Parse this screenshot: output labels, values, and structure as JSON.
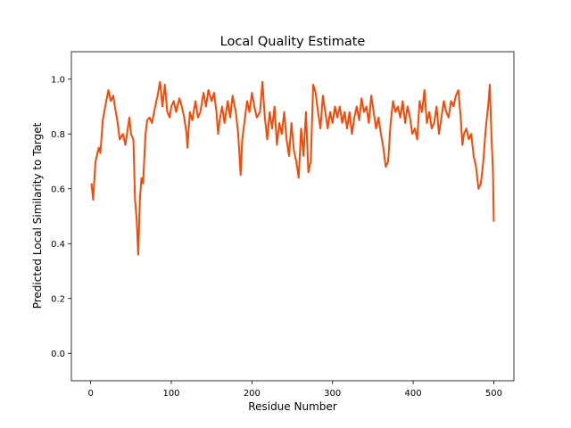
{
  "chart_data": {
    "type": "line",
    "title": "Local Quality Estimate",
    "xlabel": "Residue Number",
    "ylabel": "Predicted Local Similarity to Target",
    "xlim": [
      -23.95,
      524.95
    ],
    "ylim": [
      -0.1,
      1.1
    ],
    "xticks": [
      0,
      100,
      200,
      300,
      400,
      500
    ],
    "yticks": [
      {
        "value": 0,
        "label": "0.0"
      },
      {
        "value": 0.2,
        "label": "0.2"
      },
      {
        "value": 0.4,
        "label": "0.4"
      },
      {
        "value": 0.6,
        "label": "0.6"
      },
      {
        "value": 0.8,
        "label": "0.8"
      },
      {
        "value": 1,
        "label": "1.0"
      }
    ],
    "color": "#ff4500",
    "x": [
      1,
      3,
      6,
      10,
      12,
      15,
      18,
      20,
      22,
      25,
      28,
      30,
      33,
      36,
      40,
      43,
      46,
      48,
      50,
      53,
      55,
      57,
      59,
      61,
      63,
      65,
      68,
      70,
      73,
      76,
      80,
      83,
      86,
      89,
      92,
      95,
      98,
      100,
      103,
      106,
      110,
      113,
      116,
      119,
      120,
      123,
      126,
      130,
      133,
      136,
      140,
      143,
      146,
      150,
      153,
      156,
      158,
      160,
      163,
      166,
      170,
      173,
      176,
      180,
      183,
      185,
      186,
      188,
      191,
      194,
      197,
      200,
      203,
      206,
      210,
      213,
      216,
      219,
      222,
      225,
      228,
      231,
      234,
      237,
      240,
      243,
      246,
      249,
      252,
      255,
      258,
      261,
      264,
      267,
      270,
      273,
      276,
      279,
      282,
      285,
      288,
      291,
      294,
      297,
      300,
      303,
      306,
      309,
      312,
      315,
      318,
      321,
      324,
      327,
      330,
      333,
      336,
      339,
      342,
      345,
      348,
      351,
      354,
      357,
      360,
      363,
      366,
      369,
      372,
      375,
      378,
      381,
      384,
      387,
      390,
      393,
      396,
      399,
      402,
      405,
      408,
      411,
      414,
      417,
      420,
      423,
      426,
      429,
      432,
      435,
      438,
      441,
      444,
      447,
      450,
      453,
      456,
      459,
      461,
      463,
      466,
      469,
      472,
      475,
      478,
      481,
      484,
      487,
      490,
      493,
      495,
      497,
      499,
      500
    ],
    "values": [
      0.62,
      0.56,
      0.7,
      0.75,
      0.73,
      0.85,
      0.9,
      0.93,
      0.96,
      0.92,
      0.94,
      0.9,
      0.85,
      0.78,
      0.8,
      0.76,
      0.82,
      0.86,
      0.8,
      0.78,
      0.56,
      0.49,
      0.36,
      0.56,
      0.64,
      0.62,
      0.8,
      0.85,
      0.86,
      0.84,
      0.9,
      0.94,
      0.99,
      0.9,
      0.98,
      0.88,
      0.86,
      0.9,
      0.92,
      0.88,
      0.93,
      0.9,
      0.86,
      0.8,
      0.75,
      0.88,
      0.85,
      0.92,
      0.86,
      0.88,
      0.95,
      0.9,
      0.96,
      0.92,
      0.95,
      0.88,
      0.8,
      0.85,
      0.9,
      0.84,
      0.92,
      0.86,
      0.94,
      0.88,
      0.8,
      0.7,
      0.65,
      0.78,
      0.85,
      0.92,
      0.88,
      0.95,
      0.9,
      0.86,
      0.88,
      0.99,
      0.86,
      0.78,
      0.88,
      0.82,
      0.9,
      0.76,
      0.84,
      0.8,
      0.88,
      0.78,
      0.72,
      0.84,
      0.74,
      0.7,
      0.64,
      0.82,
      0.72,
      0.88,
      0.66,
      0.7,
      0.98,
      0.95,
      0.88,
      0.82,
      0.94,
      0.88,
      0.82,
      0.88,
      0.84,
      0.9,
      0.86,
      0.9,
      0.84,
      0.88,
      0.82,
      0.88,
      0.8,
      0.86,
      0.9,
      0.85,
      0.93,
      0.88,
      0.9,
      0.84,
      0.94,
      0.88,
      0.82,
      0.86,
      0.8,
      0.75,
      0.68,
      0.7,
      0.84,
      0.92,
      0.88,
      0.9,
      0.86,
      0.92,
      0.84,
      0.9,
      0.86,
      0.8,
      0.82,
      0.78,
      0.92,
      0.88,
      0.96,
      0.84,
      0.88,
      0.82,
      0.84,
      0.9,
      0.8,
      0.86,
      0.92,
      0.88,
      0.86,
      0.92,
      0.9,
      0.94,
      0.96,
      0.86,
      0.76,
      0.8,
      0.82,
      0.78,
      0.8,
      0.72,
      0.68,
      0.6,
      0.62,
      0.7,
      0.82,
      0.9,
      0.98,
      0.8,
      0.66,
      0.48
    ]
  }
}
